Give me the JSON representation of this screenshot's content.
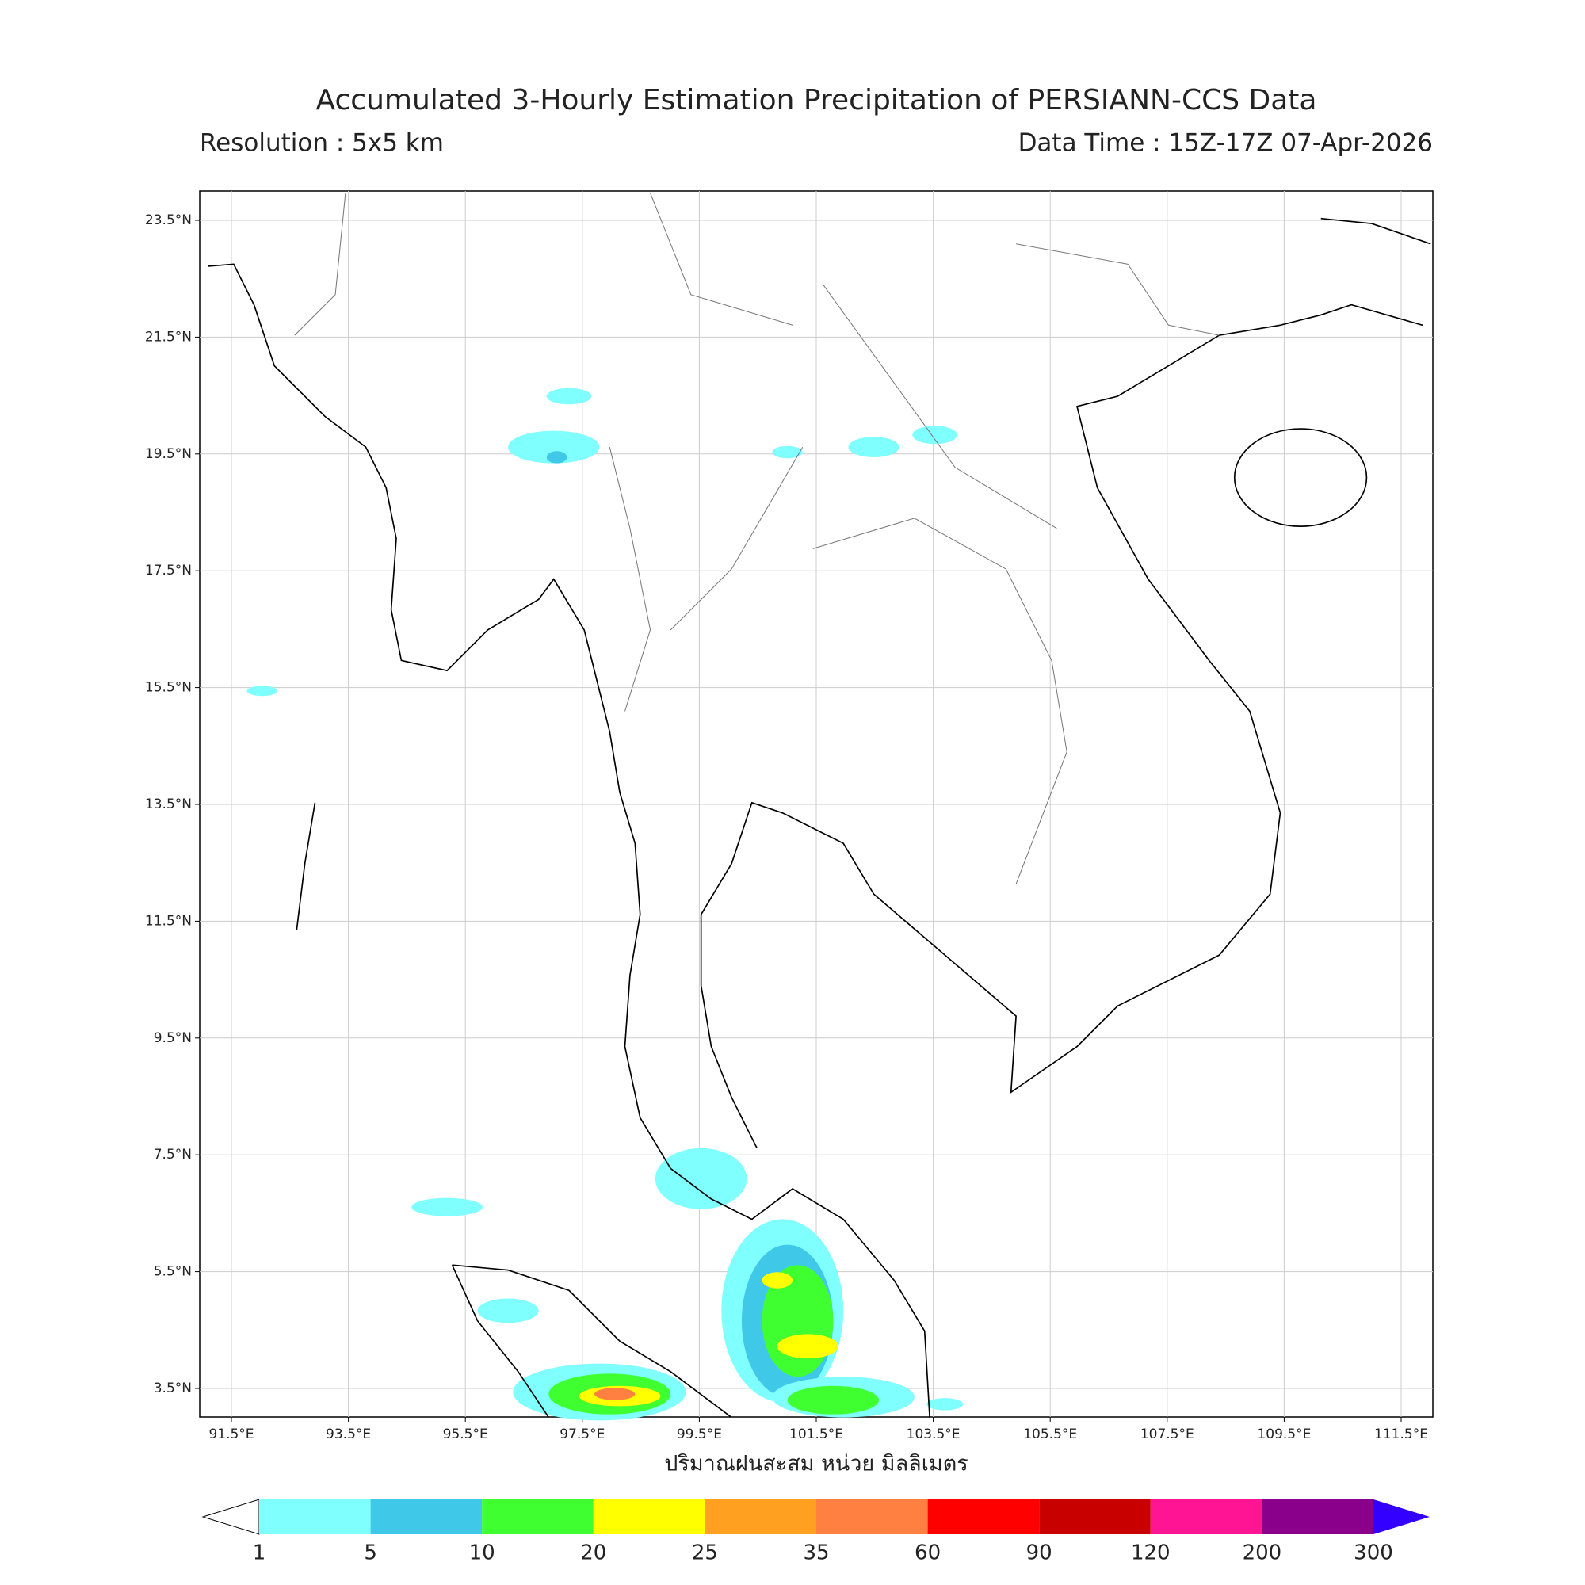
{
  "header": {
    "title": "Accumulated 3-Hourly Estimation Precipitation of PERSIANN-CCS Data",
    "resolution": "Resolution : 5x5 km",
    "data_time": "Data Time : 15Z-17Z 07-Apr-2026"
  },
  "map": {
    "lat_labels": [
      "23.5°N",
      "21.5°N",
      "19.5°N",
      "17.5°N",
      "15.5°N",
      "13.5°N",
      "11.5°N",
      "9.5°N",
      "7.5°N",
      "5.5°N",
      "3.5°N"
    ],
    "lon_labels": [
      "91.5°E",
      "93.5°E",
      "95.5°E",
      "97.5°E",
      "99.5°E",
      "101.5°E",
      "103.5°E",
      "105.5°E",
      "107.5°E",
      "109.5°E",
      "111.5°E"
    ],
    "x_label": "ปริมาณฝนสะสม หน่วย มิลลิเมตร"
  },
  "colorbar": {
    "ticks": [
      1,
      5,
      10,
      20,
      25,
      35,
      60,
      90,
      120,
      200,
      300
    ],
    "under_color": "#ffffff",
    "colors": [
      "#80ffff",
      "#40c8e8",
      "#40ff30",
      "#ffff00",
      "#ffa020",
      "#ff8040",
      "#ff0000",
      "#c80000",
      "#ff1493",
      "#8b008b"
    ],
    "over_color": "#3300ff"
  }
}
